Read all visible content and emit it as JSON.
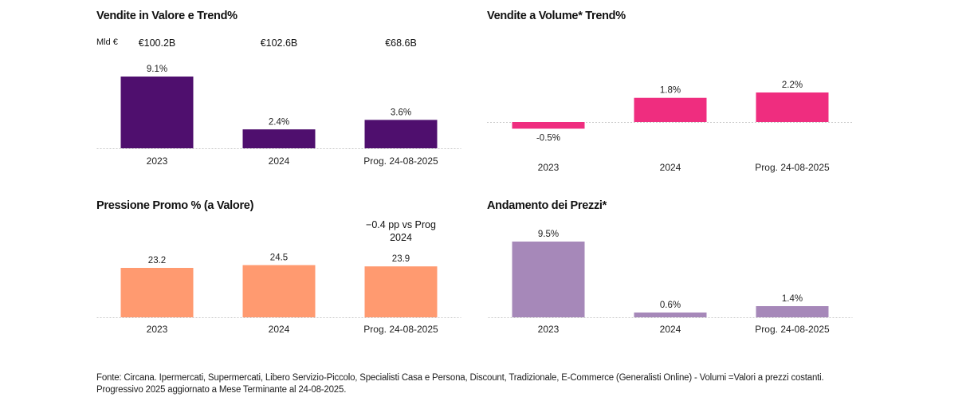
{
  "chart_data": [
    {
      "type": "bar",
      "title": "Vendite in Valore e Trend%",
      "unit_label": "Mld €",
      "header_values": [
        "€100.2B",
        "€102.6B",
        "€68.6B"
      ],
      "categories": [
        "2023",
        "2024",
        "Prog. 24-08-2025"
      ],
      "values": [
        9.1,
        2.4,
        3.6
      ],
      "value_labels": [
        "9.1%",
        "2.4%",
        "3.6%"
      ],
      "color": "#4f0f6e"
    },
    {
      "type": "bar",
      "title": "Vendite a Volume* Trend%",
      "categories": [
        "2023",
        "2024",
        "Prog. 24-08-2025"
      ],
      "values": [
        -0.5,
        1.8,
        2.2
      ],
      "value_labels": [
        "-0.5%",
        "1.8%",
        "2.2%"
      ],
      "color": "#ef2d7f"
    },
    {
      "type": "bar",
      "title": "Pressione Promo % (a Valore)",
      "annotation": [
        "−0.4 pp vs Prog",
        "2024"
      ],
      "categories": [
        "2023",
        "2024",
        "Prog. 24-08-2025"
      ],
      "values": [
        23.2,
        24.5,
        23.9
      ],
      "value_labels": [
        "23.2",
        "24.5",
        "23.9"
      ],
      "color": "#ff9a70"
    },
    {
      "type": "bar",
      "title": "Andamento dei Prezzi*",
      "categories": [
        "2023",
        "2024",
        "Prog. 24-08-2025"
      ],
      "values": [
        9.5,
        0.6,
        1.4
      ],
      "value_labels": [
        "9.5%",
        "0.6%",
        "1.4%"
      ],
      "color": "#a688b9"
    }
  ],
  "footnote": "Fonte: Circana. Ipermercati, Supermercati, Libero Servizio-Piccolo, Specialisti Casa e Persona, Discount, Tradizionale, E-Commerce (Generalisti Online) - Volumi =Valori a prezzi costanti. Progressivo 2025 aggiornato a Mese Terminante al 24-08-2025."
}
